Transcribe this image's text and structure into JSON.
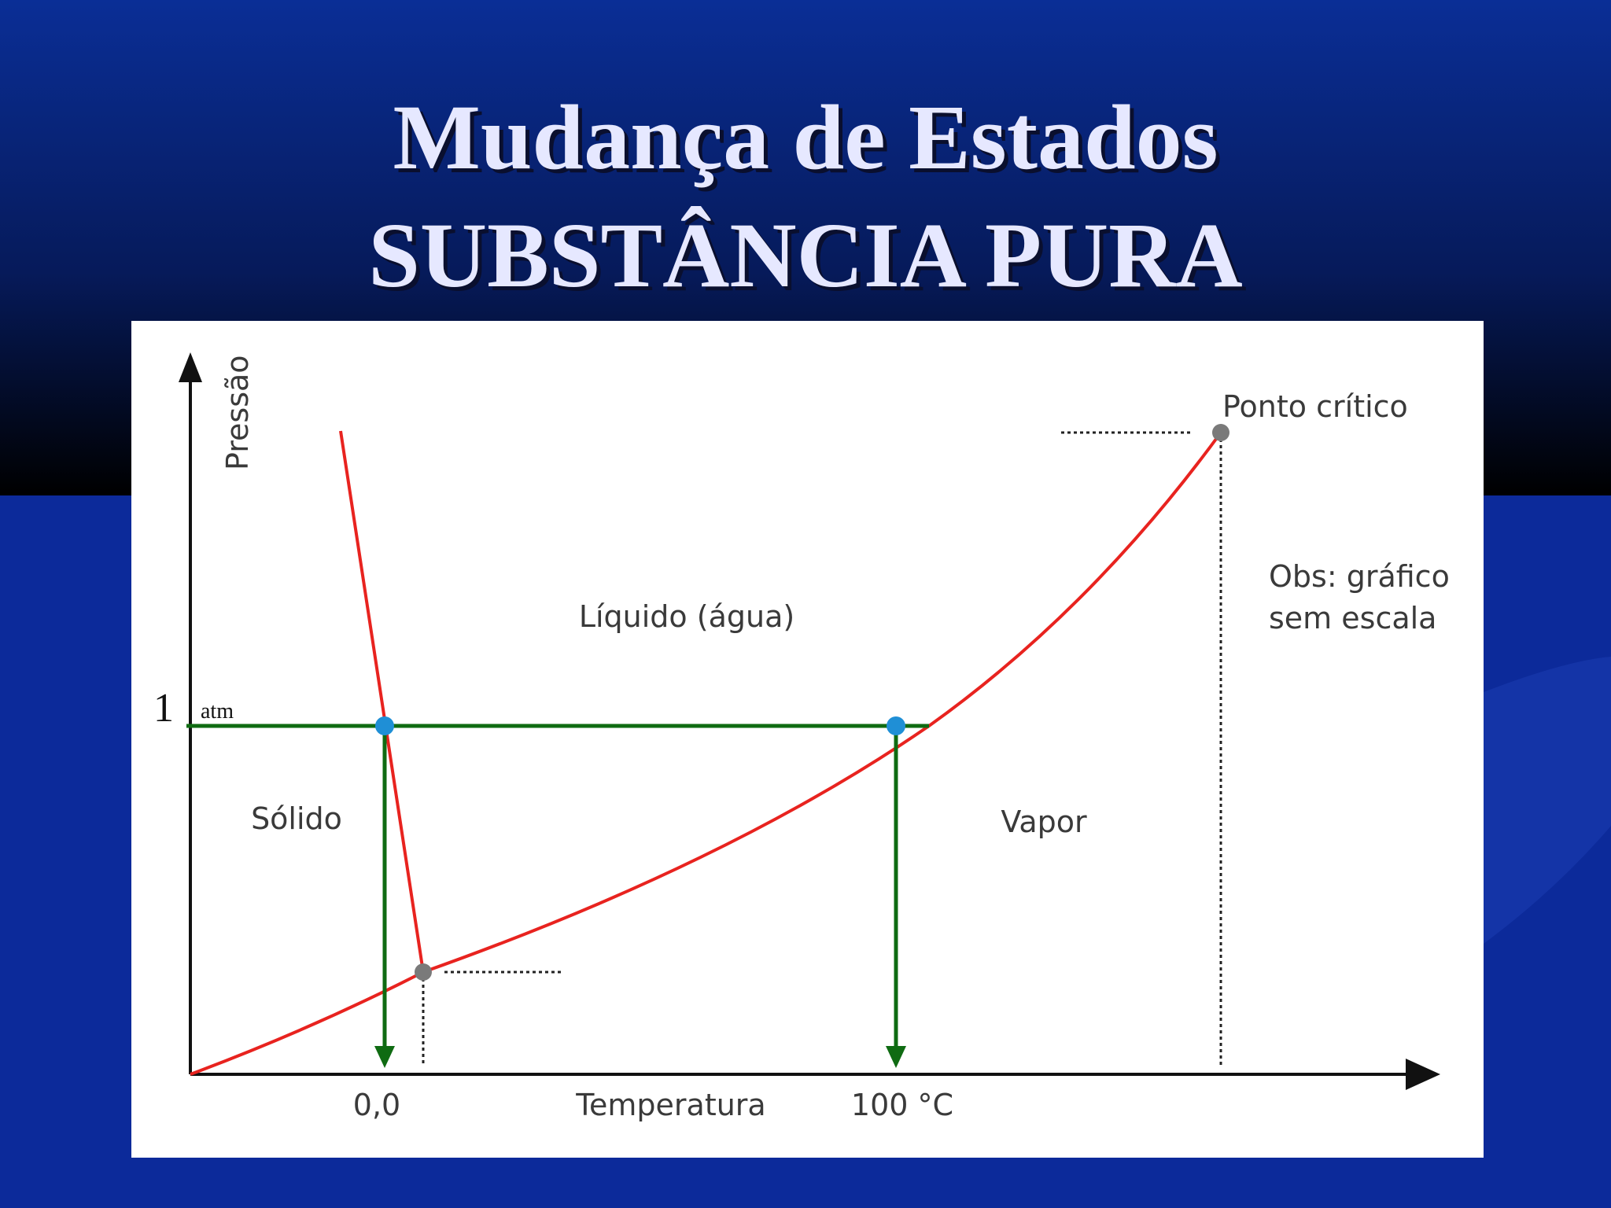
{
  "title": {
    "line1": "Mudança de Estados",
    "line2": "SUBSTÂNCIA PURA"
  },
  "diagram": {
    "y_axis_label": "Pressão",
    "x_axis_label": "Temperatura",
    "pressure_value": "1",
    "pressure_unit": "atm",
    "x_tick_melting": "0,0",
    "x_tick_boiling": "100 °C",
    "region_liquid": "Líquido (água)",
    "region_solid": "Sólido",
    "region_vapor": "Vapor",
    "critical_point_label": "Ponto crítico",
    "note_line1": "Obs: gráfico",
    "note_line2": "sem escala"
  },
  "colors": {
    "background_blue": "#0c2a9a",
    "header_gradient_top": "#0a2e96",
    "header_gradient_bottom": "#000000",
    "title_text": "#e6e8ff",
    "phase_curve": "#e8231f",
    "isobar_line": "#0f6b12",
    "intersection_point": "#1f8fd6",
    "triple_critical_point": "#7a7a7a"
  },
  "icons": [
    "up-arrow-icon",
    "right-arrow-icon",
    "down-arrow-icon"
  ]
}
